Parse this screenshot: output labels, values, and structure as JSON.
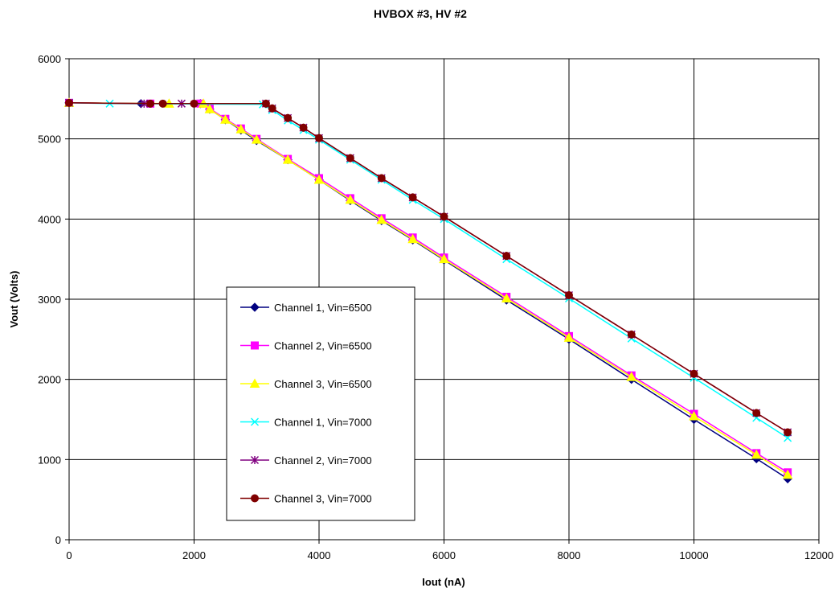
{
  "chart_data": {
    "type": "line",
    "title": "HVBOX #3, HV #2",
    "xlabel": "Iout (nA)",
    "ylabel": "Vout (Volts)",
    "xlim": [
      0,
      12000
    ],
    "ylim": [
      0,
      6000
    ],
    "xticks": [
      0,
      2000,
      4000,
      6000,
      8000,
      10000,
      12000
    ],
    "yticks": [
      0,
      1000,
      2000,
      3000,
      4000,
      5000,
      6000
    ],
    "grid": true,
    "legend_position": "center-left",
    "series": [
      {
        "name": "Channel 1, Vin=6500",
        "color": "#000080",
        "marker": "diamond",
        "x": [
          0,
          1150,
          2100,
          2250,
          2500,
          2750,
          3000,
          3500,
          4000,
          4500,
          5000,
          5500,
          6000,
          7000,
          8000,
          9000,
          10000,
          11000,
          11500
        ],
        "y": [
          5450,
          5440,
          5440,
          5370,
          5240,
          5110,
          4980,
          4740,
          4490,
          4230,
          3980,
          3740,
          3490,
          2990,
          2500,
          2000,
          1500,
          1010,
          760
        ]
      },
      {
        "name": "Channel 2, Vin=6500",
        "color": "#FF00FF",
        "marker": "square",
        "x": [
          0,
          1300,
          2100,
          2250,
          2500,
          2750,
          3000,
          3500,
          4000,
          4500,
          5000,
          5500,
          6000,
          7000,
          8000,
          9000,
          10000,
          11000,
          11500
        ],
        "y": [
          5450,
          5440,
          5440,
          5380,
          5250,
          5130,
          5000,
          4750,
          4510,
          4260,
          4010,
          3770,
          3520,
          3030,
          2540,
          2050,
          1570,
          1080,
          840
        ]
      },
      {
        "name": "Channel 3, Vin=6500",
        "color": "#FFFF00",
        "marker": "triangle",
        "x": [
          0,
          1600,
          2150,
          2250,
          2500,
          2750,
          3000,
          3500,
          4000,
          4500,
          5000,
          5500,
          6000,
          7000,
          8000,
          9000,
          10000,
          11000,
          11500
        ],
        "y": [
          5450,
          5440,
          5440,
          5370,
          5240,
          5120,
          4990,
          4740,
          4490,
          4240,
          3990,
          3750,
          3500,
          3010,
          2520,
          2030,
          1540,
          1060,
          810
        ]
      },
      {
        "name": "Channel 1, Vin=7000",
        "color": "#00FFFF",
        "marker": "x",
        "x": [
          0,
          650,
          3100,
          3250,
          3500,
          3750,
          4000,
          4500,
          5000,
          5500,
          6000,
          7000,
          8000,
          9000,
          10000,
          11000,
          11500
        ],
        "y": [
          5450,
          5440,
          5430,
          5360,
          5230,
          5110,
          4990,
          4740,
          4490,
          4240,
          4000,
          3500,
          3010,
          2510,
          2020,
          1520,
          1270
        ]
      },
      {
        "name": "Channel 2, Vin=7000",
        "color": "#800080",
        "marker": "star",
        "x": [
          0,
          1200,
          1800,
          3150,
          3250,
          3500,
          3750,
          4000,
          4500,
          5000,
          5500,
          6000,
          7000,
          8000,
          9000,
          10000,
          11000,
          11500
        ],
        "y": [
          5450,
          5440,
          5440,
          5440,
          5380,
          5260,
          5140,
          5010,
          4760,
          4510,
          4270,
          4030,
          3540,
          3050,
          2560,
          2070,
          1580,
          1340
        ]
      },
      {
        "name": "Channel 3, Vin=7000",
        "color": "#800000",
        "marker": "circle",
        "x": [
          0,
          1300,
          1500,
          2000,
          3150,
          3250,
          3500,
          3750,
          4000,
          4500,
          5000,
          5500,
          6000,
          7000,
          8000,
          9000,
          10000,
          11000,
          11500
        ],
        "y": [
          5450,
          5440,
          5440,
          5440,
          5440,
          5380,
          5260,
          5140,
          5010,
          4760,
          4510,
          4270,
          4030,
          3540,
          3050,
          2560,
          2070,
          1580,
          1340
        ]
      }
    ]
  }
}
